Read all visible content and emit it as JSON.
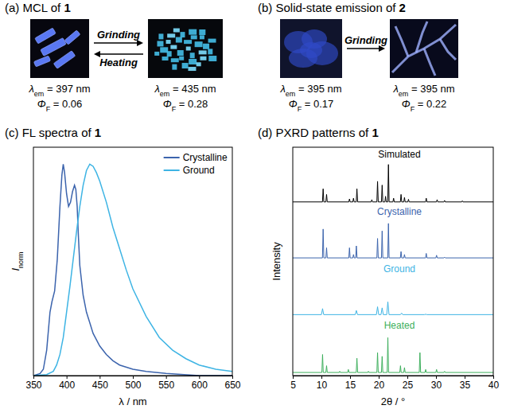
{
  "photo_panels": [
    {
      "title": "(a) MCL of 1",
      "arrows": [
        {
          "label": "Grinding",
          "direction": "right"
        },
        {
          "label": "Heating",
          "direction": "left"
        }
      ],
      "states": [
        {
          "emission": {
            "symbol": "λ",
            "subscript": "em",
            "text": " = 397 nm"
          },
          "quantum_yield": {
            "symbol": "Φ",
            "subscript": "F",
            "text": " = 0.06"
          }
        },
        {
          "emission": {
            "symbol": "λ",
            "subscript": "em",
            "text": " = 435 nm"
          },
          "quantum_yield": {
            "symbol": "Φ",
            "subscript": "F",
            "text": " = 0.28"
          }
        }
      ]
    },
    {
      "title": "(b) Solid-state emission of 2",
      "arrows": [
        {
          "label": "Grinding",
          "direction": "right"
        }
      ],
      "states": [
        {
          "emission": {
            "symbol": "λ",
            "subscript": "em",
            "text": " = 395 nm"
          },
          "quantum_yield": {
            "symbol": "Φ",
            "subscript": "F",
            "text": " = 0.17"
          }
        },
        {
          "emission": {
            "symbol": "λ",
            "subscript": "em",
            "text": " = 395 nm"
          },
          "quantum_yield": {
            "symbol": "Φ",
            "subscript": "F",
            "text": " = 0.22"
          }
        }
      ]
    }
  ],
  "chart_data": [
    {
      "type": "line",
      "title": "(c) FL spectra of 1",
      "x_label": "λ / nm",
      "y_label": {
        "text": "I",
        "subscript": "norm"
      },
      "xlim": [
        350,
        650
      ],
      "xticks": [
        350,
        400,
        450,
        500,
        550,
        600,
        650
      ],
      "ylim": [
        0,
        1.08
      ],
      "tick_labels": "x",
      "grid": false,
      "legend": "upper right",
      "series": [
        {
          "name": "Crystalline",
          "color": "#3c64ad",
          "x": [
            350,
            360,
            365,
            370,
            375,
            378,
            382,
            386,
            390,
            393,
            395,
            397,
            400,
            403,
            406,
            409,
            412,
            414,
            416,
            418,
            420,
            425,
            430,
            435,
            440,
            450,
            460,
            470,
            480,
            500,
            520,
            550,
            600,
            650
          ],
          "values": [
            0,
            0.01,
            0.03,
            0.12,
            0.3,
            0.35,
            0.4,
            0.55,
            0.8,
            0.95,
            1.0,
            0.96,
            0.86,
            0.8,
            0.82,
            0.87,
            0.9,
            0.88,
            0.8,
            0.65,
            0.52,
            0.38,
            0.3,
            0.25,
            0.2,
            0.14,
            0.1,
            0.07,
            0.05,
            0.03,
            0.02,
            0.01,
            0,
            0
          ]
        },
        {
          "name": "Ground",
          "color": "#3eb4e4",
          "x": [
            350,
            370,
            380,
            385,
            390,
            395,
            400,
            405,
            410,
            415,
            420,
            425,
            430,
            435,
            440,
            445,
            450,
            460,
            470,
            480,
            490,
            500,
            520,
            540,
            560,
            580,
            600,
            625,
            650
          ],
          "values": [
            0,
            0.005,
            0.02,
            0.05,
            0.1,
            0.18,
            0.3,
            0.42,
            0.55,
            0.68,
            0.8,
            0.9,
            0.97,
            1.0,
            0.99,
            0.96,
            0.92,
            0.82,
            0.7,
            0.6,
            0.5,
            0.41,
            0.28,
            0.18,
            0.12,
            0.08,
            0.05,
            0.03,
            0.02
          ]
        }
      ]
    },
    {
      "type": "line",
      "title": "(d) PXRD patterns of 1",
      "x_label": "2θ / °",
      "y_label": "Intensity",
      "xlim": [
        5,
        40
      ],
      "xticks": [
        5,
        10,
        15,
        20,
        25,
        30,
        35,
        40
      ],
      "ylim": [
        0,
        1.1
      ],
      "tick_labels": "x",
      "grid": false,
      "series": [
        {
          "name": "Simulated",
          "color": "#000000",
          "x": [
            5,
            10.18,
            10.3,
            10.42,
            10.78,
            10.9,
            11.02,
            14.78,
            14.9,
            15.02,
            15.48,
            15.6,
            15.72,
            16.08,
            16.2,
            16.32,
            18.68,
            18.8,
            18.92,
            19.68,
            19.8,
            19.92,
            20.48,
            20.6,
            20.72,
            21.08,
            21.2,
            21.32,
            21.58,
            21.7,
            21.82,
            22.48,
            22.6,
            22.72,
            23.78,
            23.9,
            24.02,
            24.38,
            24.5,
            24.62,
            25.08,
            25.2,
            25.32,
            28.18,
            28.3,
            28.42,
            30.08,
            30.2,
            30.32,
            31.38,
            31.5,
            31.62,
            34.48,
            34.6,
            34.72,
            40
          ],
          "values": [
            0,
            0,
            0.35,
            0,
            0,
            0.2,
            0,
            0,
            0.08,
            0,
            0,
            0.1,
            0,
            0,
            0.35,
            0,
            0,
            0.06,
            0,
            0,
            0.55,
            0,
            0,
            0.45,
            0,
            0,
            0.15,
            0,
            0,
            1.0,
            0,
            0,
            0.1,
            0,
            0,
            0.2,
            0,
            0,
            0.12,
            0,
            0,
            0.07,
            0,
            0,
            0.1,
            0,
            0,
            0.06,
            0,
            0,
            0.04,
            0,
            0,
            0.03,
            0,
            0
          ]
        },
        {
          "name": "Crystalline",
          "color": "#3c64ad",
          "x": [
            5,
            10.18,
            10.3,
            10.42,
            10.78,
            10.9,
            11.02,
            14.78,
            14.9,
            15.02,
            15.48,
            15.6,
            15.72,
            15.98,
            16.1,
            16.22,
            19.68,
            19.8,
            19.92,
            20.48,
            20.6,
            20.72,
            21.58,
            21.7,
            21.82,
            23.78,
            23.9,
            24.02,
            24.38,
            24.5,
            24.62,
            28.18,
            28.3,
            28.42,
            29.98,
            30.1,
            30.22,
            31.38,
            31.5,
            31.62,
            40
          ],
          "values": [
            0.03,
            0.03,
            0.8,
            0.03,
            0.03,
            0.3,
            0.03,
            0.03,
            0.3,
            0.03,
            0.03,
            0.12,
            0.03,
            0.03,
            0.35,
            0.03,
            0.03,
            0.55,
            0.03,
            0.03,
            0.75,
            0.03,
            0.03,
            0.95,
            0.03,
            0.03,
            0.2,
            0.03,
            0.03,
            0.12,
            0.03,
            0.03,
            0.15,
            0.03,
            0.03,
            0.1,
            0.03,
            0.03,
            0.05,
            0.03,
            0.03
          ]
        },
        {
          "name": "Ground",
          "color": "#3eb4e4",
          "x": [
            5,
            10.0,
            10.2,
            10.4,
            15.9,
            16.1,
            16.3,
            19.6,
            19.8,
            20.0,
            20.4,
            20.6,
            20.8,
            21.4,
            21.6,
            21.8,
            23.8,
            24.0,
            24.2,
            28.0,
            28.2,
            28.4,
            40
          ],
          "values": [
            0.04,
            0.04,
            0.2,
            0.04,
            0.04,
            0.15,
            0.04,
            0.04,
            0.25,
            0.04,
            0.04,
            0.22,
            0.04,
            0.04,
            0.38,
            0.04,
            0.04,
            0.08,
            0.04,
            0.04,
            0.05,
            0.04,
            0.04
          ]
        },
        {
          "name": "Heated",
          "color": "#3daf5c",
          "x": [
            5,
            10.08,
            10.2,
            10.32,
            10.78,
            10.9,
            11.02,
            13.08,
            13.2,
            13.32,
            14.58,
            14.7,
            14.82,
            16.08,
            16.2,
            16.32,
            18.08,
            18.2,
            18.32,
            19.68,
            19.8,
            19.92,
            20.48,
            20.6,
            20.72,
            21.48,
            21.6,
            21.72,
            23.68,
            23.8,
            23.92,
            24.38,
            24.5,
            24.62,
            27.08,
            27.2,
            27.32,
            28.08,
            28.2,
            28.32,
            29.98,
            30.1,
            30.22,
            31.38,
            31.5,
            31.62,
            40
          ],
          "values": [
            0.02,
            0.02,
            0.5,
            0.02,
            0.02,
            0.2,
            0.02,
            0.02,
            0.05,
            0.02,
            0.02,
            0.1,
            0.02,
            0.02,
            0.4,
            0.02,
            0.02,
            0.05,
            0.02,
            0.02,
            0.55,
            0.02,
            0.02,
            0.45,
            0.02,
            0.02,
            0.95,
            0.02,
            0.02,
            0.2,
            0.02,
            0.02,
            0.15,
            0.02,
            0.02,
            0.55,
            0.02,
            0.02,
            0.1,
            0.02,
            0.02,
            0.1,
            0.02,
            0.02,
            0.05,
            0.02,
            0.02
          ]
        }
      ]
    }
  ]
}
